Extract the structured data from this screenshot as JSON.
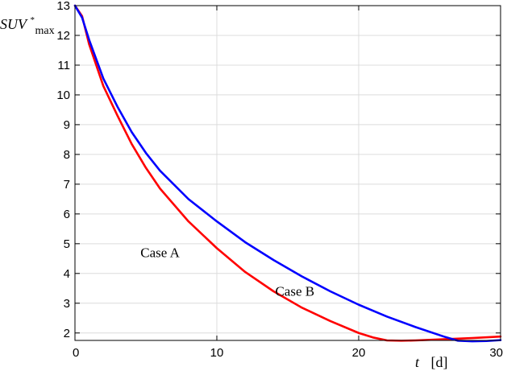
{
  "chart_data": {
    "type": "line",
    "title": "",
    "xlabel": {
      "symbol": "t",
      "unit": "[d]"
    },
    "ylabel": {
      "base": "SUV",
      "superscript": "*",
      "subscript": "max"
    },
    "xlim": [
      0,
      30
    ],
    "ylim": [
      1.75,
      13
    ],
    "x_ticks": [
      0,
      10,
      20,
      30
    ],
    "y_ticks": [
      2,
      3,
      4,
      5,
      6,
      7,
      8,
      9,
      10,
      11,
      12,
      13
    ],
    "grid": true,
    "legend": "none",
    "series": [
      {
        "name": "Case A",
        "color": "#ff0000",
        "label_at": [
          6,
          4.55
        ],
        "points": [
          [
            0,
            13
          ],
          [
            0.5,
            12.65
          ],
          [
            1,
            11.7
          ],
          [
            2,
            10.3
          ],
          [
            3,
            9.3
          ],
          [
            4,
            8.35
          ],
          [
            5,
            7.55
          ],
          [
            6,
            6.85
          ],
          [
            8,
            5.75
          ],
          [
            10,
            4.85
          ],
          [
            12,
            4.05
          ],
          [
            14,
            3.4
          ],
          [
            16,
            2.85
          ],
          [
            18,
            2.4
          ],
          [
            20,
            2.0
          ],
          [
            21,
            1.85
          ],
          [
            22,
            1.75
          ],
          [
            23,
            1.74
          ],
          [
            24,
            1.75
          ],
          [
            26,
            1.79
          ],
          [
            28,
            1.83
          ],
          [
            30,
            1.88
          ]
        ]
      },
      {
        "name": "Case B",
        "color": "#0000ff",
        "label_at": [
          15.5,
          3.25
        ],
        "points": [
          [
            0,
            13
          ],
          [
            0.5,
            12.6
          ],
          [
            1,
            11.85
          ],
          [
            2,
            10.55
          ],
          [
            3,
            9.6
          ],
          [
            4,
            8.75
          ],
          [
            5,
            8.05
          ],
          [
            6,
            7.45
          ],
          [
            8,
            6.5
          ],
          [
            10,
            5.75
          ],
          [
            12,
            5.05
          ],
          [
            14,
            4.45
          ],
          [
            16,
            3.9
          ],
          [
            18,
            3.4
          ],
          [
            20,
            2.95
          ],
          [
            22,
            2.55
          ],
          [
            24,
            2.2
          ],
          [
            26,
            1.88
          ],
          [
            27,
            1.74
          ],
          [
            28,
            1.72
          ],
          [
            29,
            1.73
          ],
          [
            30,
            1.76
          ]
        ]
      }
    ]
  }
}
